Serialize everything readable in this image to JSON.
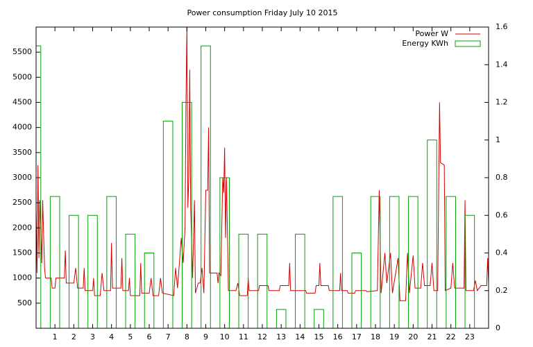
{
  "chart_data": {
    "type": "mixed",
    "title": "Power consumption Friday July 10 2015",
    "xlim": [
      0,
      24
    ],
    "xticks": [
      1,
      2,
      3,
      4,
      5,
      6,
      7,
      8,
      9,
      10,
      11,
      12,
      13,
      14,
      15,
      16,
      17,
      18,
      19,
      20,
      21,
      22,
      23
    ],
    "ylim": [
      0,
      6000
    ],
    "yticks": [
      500,
      1000,
      1500,
      2000,
      2500,
      3000,
      3500,
      4000,
      4500,
      5000,
      5500
    ],
    "y2lim": [
      0,
      1.6
    ],
    "y2ticks": [
      0,
      0.2,
      0.4,
      0.6,
      0.8,
      1,
      1.2,
      1.4,
      1.6
    ],
    "legend": "top-right",
    "series": [
      {
        "name": "Power W",
        "type": "line",
        "color": "#d00000",
        "x": [
          0,
          0.05,
          0.1,
          0.15,
          0.2,
          0.3,
          0.35,
          0.45,
          0.5,
          0.8,
          0.85,
          1,
          1.05,
          1.5,
          1.55,
          1.6,
          2,
          2.1,
          2.2,
          2.5,
          2.55,
          2.6,
          3,
          3.05,
          3.1,
          3.4,
          3.5,
          3.6,
          3.95,
          4,
          4.05,
          4.5,
          4.55,
          4.6,
          4.9,
          4.95,
          5,
          5.5,
          5.55,
          5.6,
          6,
          6.1,
          6.2,
          6.5,
          6.6,
          6.7,
          7.3,
          7.4,
          7.5,
          7.7,
          7.8,
          7.9,
          7.95,
          8,
          8.05,
          8.1,
          8.15,
          8.2,
          8.3,
          8.4,
          8.45,
          8.6,
          8.7,
          8.8,
          8.9,
          9,
          9.1,
          9.15,
          9.2,
          9.6,
          9.65,
          9.7,
          9.8,
          9.9,
          9.95,
          10,
          10.05,
          10.1,
          10.2,
          10.6,
          10.7,
          10.8,
          11.2,
          11.25,
          11.3,
          11.8,
          11.85,
          12.3,
          12.35,
          12.9,
          12.95,
          13.4,
          13.45,
          13.5,
          14.3,
          14.35,
          14.8,
          14.85,
          15,
          15.05,
          15.1,
          15.5,
          15.55,
          16.1,
          16.15,
          16.2,
          16.5,
          16.55,
          16.9,
          16.95,
          17.5,
          17.55,
          18.1,
          18.2,
          18.3,
          18.5,
          18.6,
          18.8,
          18.9,
          19.2,
          19.3,
          19.6,
          19.7,
          19.8,
          20,
          20.1,
          20.4,
          20.5,
          20.6,
          20.9,
          21,
          21.1,
          21.3,
          21.4,
          21.45,
          21.65,
          21.7,
          22,
          22.1,
          22.2,
          22.7,
          22.75,
          22.8,
          23.2,
          23.3,
          23.4,
          23.6,
          23.9,
          23.95,
          24
        ],
        "values": [
          2400,
          1100,
          3250,
          1400,
          2550,
          1300,
          2550,
          1200,
          1000,
          1000,
          800,
          800,
          1000,
          1000,
          1550,
          900,
          900,
          1200,
          800,
          800,
          1200,
          750,
          750,
          1000,
          650,
          650,
          1100,
          750,
          750,
          1700,
          800,
          800,
          1400,
          750,
          750,
          1000,
          650,
          650,
          1300,
          700,
          700,
          1000,
          650,
          650,
          1000,
          700,
          650,
          1200,
          800,
          1800,
          1300,
          2000,
          4500,
          6000,
          2400,
          3000,
          5150,
          2400,
          1000,
          2550,
          700,
          900,
          900,
          1200,
          700,
          2750,
          2750,
          4000,
          1100,
          1100,
          900,
          1100,
          1050,
          3000,
          2700,
          3600,
          1800,
          3000,
          750,
          750,
          900,
          650,
          650,
          1000,
          750,
          750,
          850,
          850,
          750,
          750,
          850,
          850,
          1300,
          750,
          750,
          700,
          700,
          850,
          850,
          1300,
          850,
          850,
          750,
          750,
          1100,
          750,
          750,
          700,
          700,
          750,
          750,
          730,
          750,
          2750,
          700,
          1500,
          900,
          1500,
          700,
          1400,
          550,
          550,
          1500,
          700,
          1450,
          800,
          800,
          1300,
          850,
          850,
          1300,
          750,
          750,
          4500,
          3300,
          3250,
          750,
          800,
          1300,
          800,
          800,
          2550,
          750,
          750,
          950,
          750,
          850,
          850,
          1400,
          900
        ]
      },
      {
        "name": "Energy KWh",
        "type": "bar",
        "color": "#00a000",
        "axis": "y2",
        "x": [
          0,
          1,
          2,
          3,
          4,
          5,
          6,
          7,
          8,
          9,
          10,
          11,
          12,
          13,
          14,
          15,
          16,
          17,
          18,
          19,
          20,
          21,
          22,
          23
        ],
        "values": [
          1.5,
          0.7,
          0.6,
          0.6,
          0.7,
          0.5,
          0.4,
          1.1,
          1.2,
          1.5,
          0.8,
          0.5,
          0.5,
          0.1,
          0.5,
          0.1,
          0.7,
          0.4,
          0.7,
          0.7,
          0.7,
          1.0,
          0.7,
          0.6
        ]
      }
    ]
  }
}
